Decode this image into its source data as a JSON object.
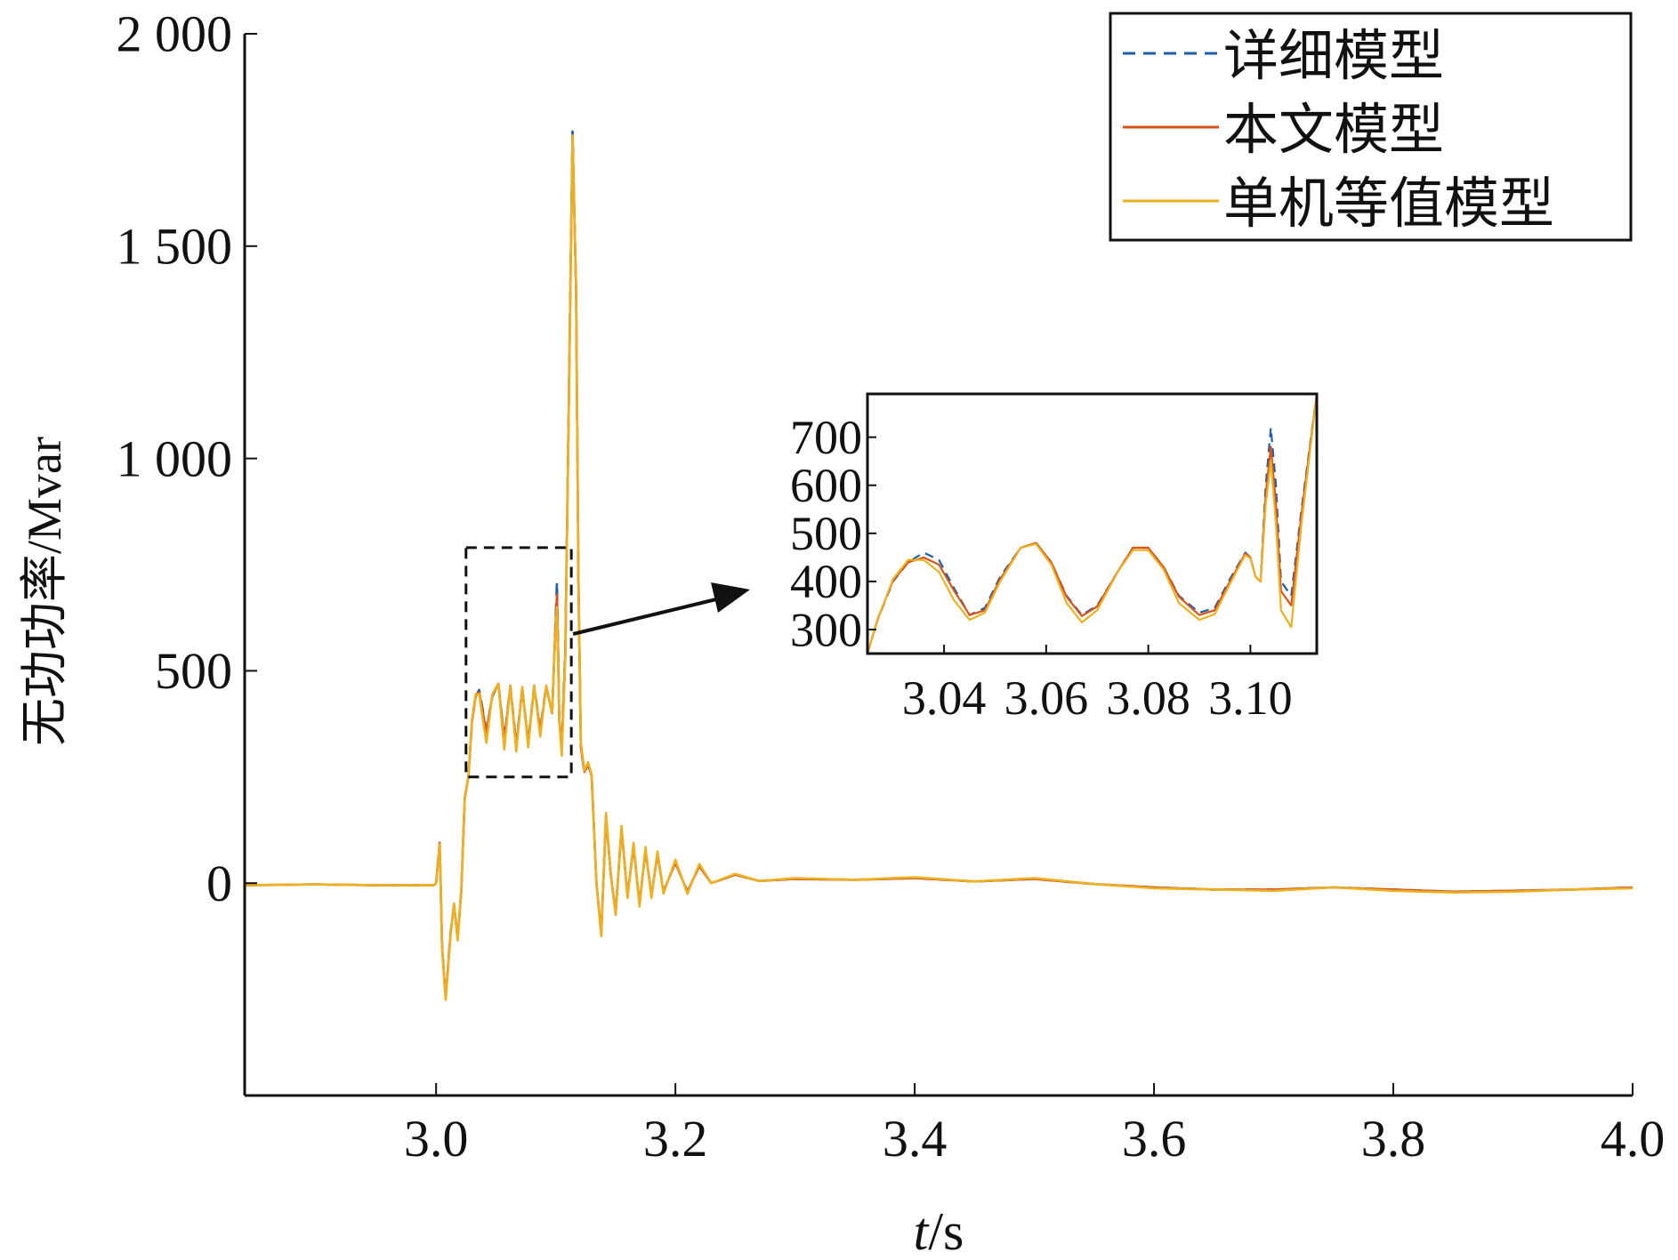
{
  "chart_data": [
    {
      "type": "line",
      "xlabel": "t/s",
      "ylabel": "无功功率/Mvar",
      "xlim": [
        2.84,
        4.0
      ],
      "ylim": [
        -500,
        2000
      ],
      "xticks": [
        3.0,
        3.2,
        3.4,
        3.6,
        3.8,
        4.0
      ],
      "xtick_labels": [
        "3.0",
        "3.2",
        "3.4",
        "3.6",
        "3.8",
        "4.0"
      ],
      "yticks": [
        0,
        500,
        1000,
        1500,
        2000
      ],
      "ytick_labels": [
        "0",
        "500",
        "1 000",
        "1 500",
        "2 000"
      ],
      "grid": false,
      "legend": "top-right",
      "series": [
        {
          "name": "详细模型",
          "color": "#1f5fa8",
          "style": "dashed"
        },
        {
          "name": "本文模型",
          "color": "#d95319",
          "style": "solid"
        },
        {
          "name": "单机等值模型",
          "color": "#edb120",
          "style": "solid"
        }
      ],
      "x": [
        2.84,
        2.9,
        2.95,
        2.998,
        3.0,
        3.003,
        3.005,
        3.008,
        3.012,
        3.015,
        3.018,
        3.021,
        3.024,
        3.027,
        3.03,
        3.033,
        3.036,
        3.042,
        3.047,
        3.052,
        3.057,
        3.062,
        3.067,
        3.072,
        3.077,
        3.082,
        3.087,
        3.092,
        3.097,
        3.099,
        3.101,
        3.103,
        3.105,
        3.108,
        3.111,
        3.114,
        3.117,
        3.119,
        3.121,
        3.124,
        3.127,
        3.13,
        3.134,
        3.138,
        3.142,
        3.146,
        3.15,
        3.155,
        3.16,
        3.165,
        3.17,
        3.175,
        3.18,
        3.185,
        3.19,
        3.2,
        3.21,
        3.22,
        3.23,
        3.25,
        3.27,
        3.3,
        3.35,
        3.4,
        3.45,
        3.5,
        3.55,
        3.6,
        3.65,
        3.7,
        3.75,
        3.8,
        3.85,
        3.9,
        3.95,
        4.0
      ],
      "y_detailed": [
        -5,
        -3,
        -5,
        -5,
        0,
        95,
        -150,
        -270,
        -120,
        -50,
        -130,
        -20,
        200,
        250,
        380,
        440,
        455,
        360,
        440,
        470,
        340,
        465,
        325,
        460,
        330,
        465,
        360,
        465,
        400,
        550,
        710,
        380,
        330,
        550,
        1150,
        1770,
        1400,
        700,
        320,
        260,
        280,
        250,
        0,
        -120,
        160,
        20,
        -70,
        130,
        -30,
        90,
        -50,
        80,
        -30,
        70,
        -20,
        50,
        -20,
        40,
        0,
        20,
        5,
        10,
        8,
        12,
        4,
        10,
        -2,
        -10,
        -15,
        -15,
        -10,
        -15,
        -20,
        -18,
        -15,
        -10
      ],
      "y_proposed": [
        -5,
        -3,
        -5,
        -5,
        0,
        95,
        -150,
        -272,
        -122,
        -50,
        -132,
        -20,
        200,
        252,
        382,
        440,
        450,
        355,
        442,
        470,
        335,
        462,
        322,
        458,
        330,
        462,
        358,
        462,
        400,
        550,
        680,
        380,
        320,
        540,
        1140,
        1760,
        1400,
        700,
        320,
        262,
        282,
        252,
        0,
        -118,
        158,
        20,
        -70,
        128,
        -32,
        88,
        -50,
        78,
        -30,
        68,
        -20,
        48,
        -20,
        40,
        0,
        20,
        5,
        10,
        8,
        12,
        4,
        10,
        -2,
        -10,
        -15,
        -15,
        -10,
        -15,
        -20,
        -18,
        -15,
        -10
      ],
      "y_single": [
        -5,
        -3,
        -5,
        -5,
        0,
        92,
        -155,
        -275,
        -125,
        -48,
        -135,
        -18,
        198,
        250,
        385,
        445,
        445,
        330,
        445,
        470,
        315,
        465,
        310,
        462,
        320,
        465,
        345,
        465,
        400,
        545,
        650,
        380,
        300,
        530,
        1130,
        1760,
        1410,
        720,
        330,
        265,
        285,
        255,
        0,
        -125,
        165,
        22,
        -75,
        135,
        -35,
        95,
        -55,
        85,
        -35,
        75,
        -25,
        55,
        -25,
        45,
        0,
        22,
        5,
        12,
        8,
        14,
        4,
        12,
        -2,
        -12,
        -15,
        -18,
        -10,
        -18,
        -22,
        -20,
        -15,
        -12
      ]
    },
    {
      "type": "line",
      "xlim": [
        3.025,
        3.113
      ],
      "ylim": [
        250,
        790
      ],
      "xticks": [
        3.04,
        3.06,
        3.08,
        3.1
      ],
      "xtick_labels": [
        "3.04",
        "3.06",
        "3.08",
        "3.10"
      ],
      "yticks": [
        300,
        400,
        500,
        600,
        700
      ],
      "ytick_labels": [
        "300",
        "400",
        "500",
        "600",
        "700"
      ],
      "grid": false,
      "x": [
        3.025,
        3.027,
        3.03,
        3.033,
        3.036,
        3.039,
        3.042,
        3.045,
        3.048,
        3.051,
        3.055,
        3.058,
        3.061,
        3.064,
        3.067,
        3.07,
        3.074,
        3.077,
        3.08,
        3.083,
        3.086,
        3.09,
        3.093,
        3.096,
        3.099,
        3.1,
        3.101,
        3.102,
        3.103,
        3.104,
        3.105,
        3.106,
        3.108,
        3.11,
        3.113
      ],
      "y_detailed": [
        250,
        320,
        400,
        440,
        460,
        445,
        385,
        330,
        345,
        410,
        470,
        480,
        440,
        370,
        330,
        350,
        420,
        470,
        470,
        430,
        370,
        335,
        345,
        405,
        460,
        450,
        410,
        400,
        600,
        720,
        600,
        400,
        370,
        550,
        790
      ],
      "y_proposed": [
        250,
        322,
        402,
        440,
        450,
        435,
        380,
        330,
        340,
        405,
        470,
        480,
        440,
        368,
        328,
        348,
        420,
        470,
        470,
        430,
        368,
        330,
        340,
        400,
        458,
        450,
        410,
        400,
        580,
        680,
        560,
        380,
        350,
        540,
        790
      ],
      "y_single": [
        250,
        320,
        405,
        445,
        445,
        420,
        360,
        320,
        335,
        400,
        470,
        478,
        435,
        355,
        315,
        340,
        420,
        465,
        465,
        425,
        355,
        320,
        332,
        395,
        455,
        448,
        410,
        400,
        560,
        650,
        520,
        340,
        305,
        520,
        790
      ]
    }
  ]
}
